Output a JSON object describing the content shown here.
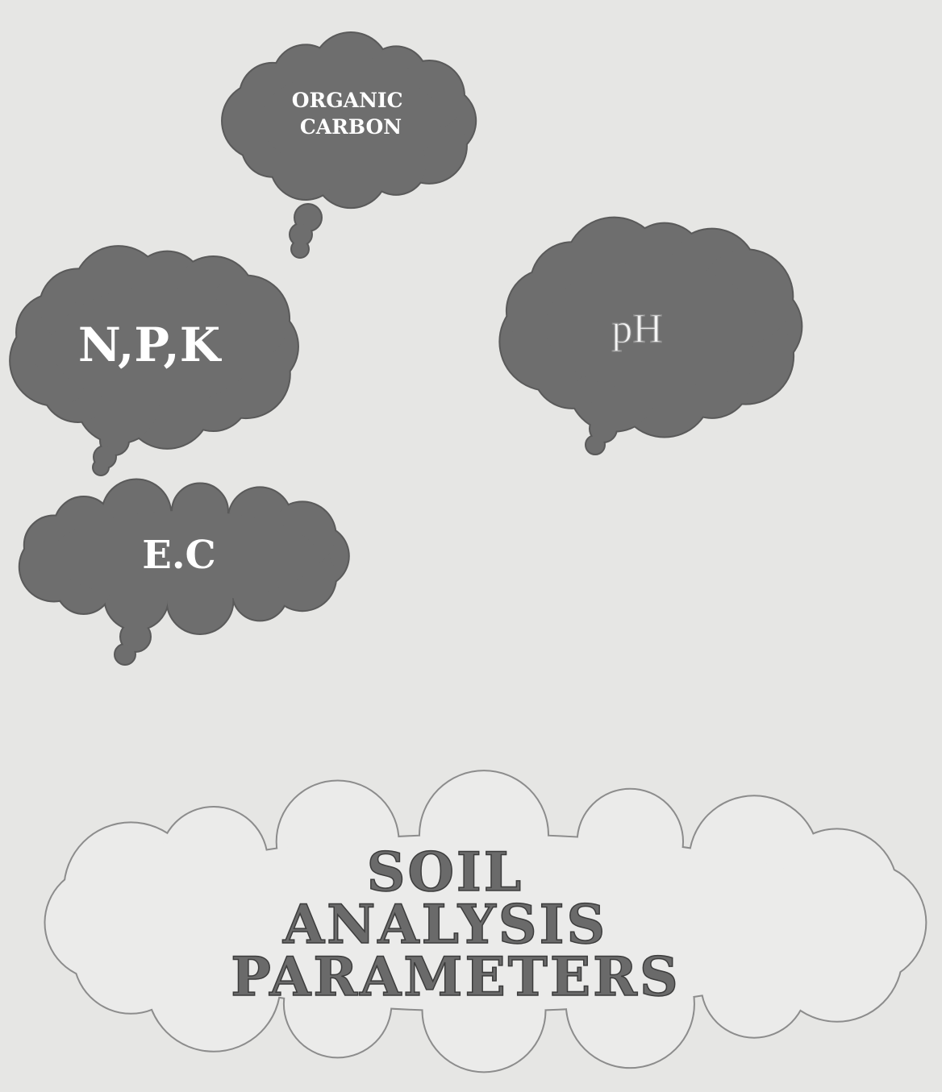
{
  "nodes": [
    {
      "lines": [
        "ORGANIC",
        "CARBON"
      ]
    },
    {
      "lines": [
        "N,P,K"
      ]
    },
    {
      "lines": [
        "pH"
      ]
    },
    {
      "lines": [
        "E.C"
      ]
    },
    {
      "lines": [
        "SOIL",
        "ANALYSIS",
        "PARAMETERS"
      ]
    }
  ]
}
